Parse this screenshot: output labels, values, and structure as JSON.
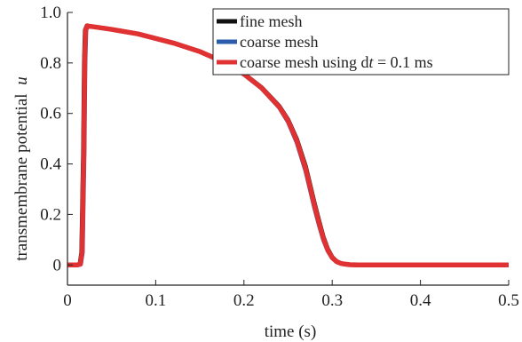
{
  "chart_data": {
    "type": "line",
    "title": "",
    "xlabel": "time (s)",
    "ylabel": "transmembrane potential",
    "ylabel_var": "u",
    "xlim": [
      0,
      0.5
    ],
    "ylim": [
      -0.08,
      1.0
    ],
    "xticks": [
      0,
      0.1,
      0.2,
      0.3,
      0.4,
      0.5
    ],
    "xtick_labels": [
      "0",
      "0.1",
      "0.2",
      "0.3",
      "0.4",
      "0.5"
    ],
    "yticks": [
      0,
      0.2,
      0.4,
      0.6,
      0.8,
      1.0
    ],
    "ytick_labels": [
      "0",
      "0.2",
      "0.4",
      "0.6",
      "0.8",
      "1.0"
    ],
    "grid": false,
    "legend_position": "top-right",
    "legend_entries": [
      {
        "prefix": "fine mesh",
        "italic": "",
        "suffix": ""
      },
      {
        "prefix": "coarse mesh",
        "italic": "",
        "suffix": ""
      },
      {
        "prefix": "coarse mesh using d",
        "italic": "t",
        "suffix": " = 0.1 ms"
      }
    ],
    "series": [
      {
        "name": "fine mesh",
        "color": "#111111",
        "x": [
          0,
          0.01,
          0.014,
          0.016,
          0.018,
          0.019,
          0.02,
          0.022,
          0.025,
          0.03,
          0.05,
          0.08,
          0.1,
          0.12,
          0.15,
          0.18,
          0.2,
          0.22,
          0.24,
          0.25,
          0.26,
          0.27,
          0.28,
          0.285,
          0.29,
          0.295,
          0.3,
          0.305,
          0.31,
          0.315,
          0.32,
          0.325,
          0.33,
          0.34,
          0.35,
          0.4,
          0.45,
          0.5
        ],
        "y": [
          0,
          0,
          0.003,
          0.05,
          0.45,
          0.8,
          0.93,
          0.947,
          0.945,
          0.943,
          0.933,
          0.915,
          0.897,
          0.879,
          0.845,
          0.799,
          0.757,
          0.703,
          0.629,
          0.575,
          0.497,
          0.389,
          0.243,
          0.175,
          0.111,
          0.063,
          0.031,
          0.014,
          0.006,
          0.003,
          0.001,
          0.0005,
          0,
          0,
          0,
          0,
          0,
          0
        ]
      },
      {
        "name": "coarse mesh",
        "color": "#2a5caa",
        "x": [
          0,
          0.012,
          0.015,
          0.017,
          0.019,
          0.02,
          0.021,
          0.023,
          0.025,
          0.03,
          0.05,
          0.08,
          0.1,
          0.12,
          0.15,
          0.18,
          0.2,
          0.22,
          0.24,
          0.25,
          0.26,
          0.27,
          0.28,
          0.285,
          0.29,
          0.295,
          0.3,
          0.305,
          0.31,
          0.315,
          0.32,
          0.325,
          0.33,
          0.34,
          0.35,
          0.4,
          0.45,
          0.5
        ],
        "y": [
          0,
          0,
          0.003,
          0.05,
          0.45,
          0.8,
          0.93,
          0.947,
          0.945,
          0.943,
          0.933,
          0.915,
          0.897,
          0.879,
          0.845,
          0.799,
          0.755,
          0.7,
          0.624,
          0.567,
          0.485,
          0.372,
          0.226,
          0.16,
          0.1,
          0.056,
          0.028,
          0.013,
          0.006,
          0.003,
          0.001,
          0.0005,
          0,
          0,
          0,
          0,
          0,
          0
        ]
      },
      {
        "name": "coarse mesh using dt = 0.1 ms",
        "color": "#e03232",
        "x": [
          0,
          0.011,
          0.0145,
          0.0165,
          0.0185,
          0.0195,
          0.0205,
          0.0225,
          0.025,
          0.03,
          0.05,
          0.08,
          0.1,
          0.12,
          0.15,
          0.18,
          0.2,
          0.22,
          0.24,
          0.25,
          0.26,
          0.27,
          0.28,
          0.285,
          0.29,
          0.295,
          0.3,
          0.305,
          0.31,
          0.315,
          0.32,
          0.325,
          0.33,
          0.34,
          0.35,
          0.4,
          0.45,
          0.5
        ],
        "y": [
          0,
          0,
          0.003,
          0.05,
          0.45,
          0.8,
          0.93,
          0.947,
          0.945,
          0.943,
          0.933,
          0.915,
          0.897,
          0.879,
          0.845,
          0.799,
          0.756,
          0.701,
          0.626,
          0.571,
          0.491,
          0.38,
          0.234,
          0.167,
          0.105,
          0.059,
          0.029,
          0.013,
          0.006,
          0.003,
          0.001,
          0.0005,
          0,
          0,
          0,
          0,
          0,
          0
        ]
      }
    ]
  }
}
